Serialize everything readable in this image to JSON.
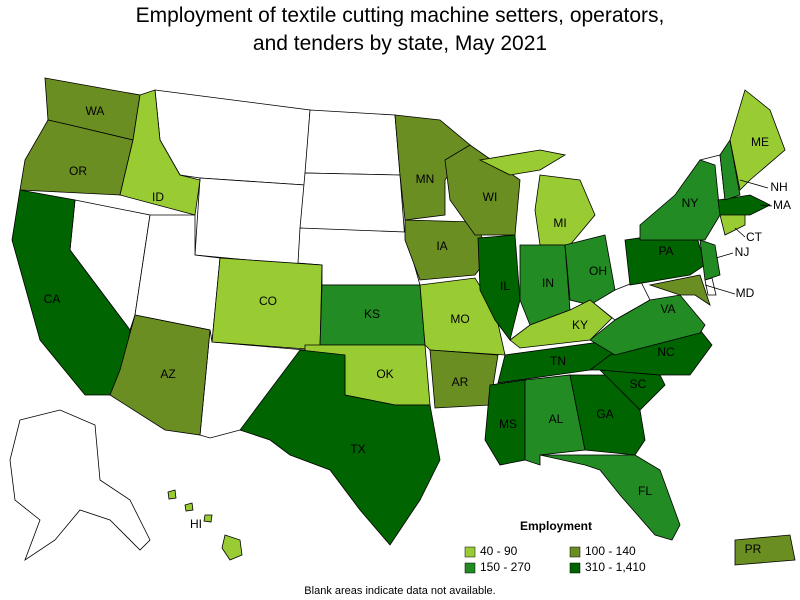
{
  "title": "Employment of textile cutting machine setters, operators, and tenders by state, May 2021",
  "legend": {
    "title": "Employment",
    "items": [
      {
        "label": "40 - 90",
        "color": "#99cc33"
      },
      {
        "label": "100 - 140",
        "color": "#6b8e23"
      },
      {
        "label": "150 - 270",
        "color": "#238b23"
      },
      {
        "label": "310 - 1,410",
        "color": "#006400"
      }
    ]
  },
  "states": [
    {
      "label": "WA",
      "bin": 1
    },
    {
      "label": "OR",
      "bin": 1
    },
    {
      "label": "CA",
      "bin": 3
    },
    {
      "label": "ID",
      "bin": 0
    },
    {
      "label": "AZ",
      "bin": 1
    },
    {
      "label": "CO",
      "bin": 0
    },
    {
      "label": "KS",
      "bin": 2
    },
    {
      "label": "OK",
      "bin": 0
    },
    {
      "label": "TX",
      "bin": 3
    },
    {
      "label": "MN",
      "bin": 1
    },
    {
      "label": "IA",
      "bin": 1
    },
    {
      "label": "MO",
      "bin": 0
    },
    {
      "label": "AR",
      "bin": 1
    },
    {
      "label": "WI",
      "bin": 1
    },
    {
      "label": "IL",
      "bin": 3
    },
    {
      "label": "MI",
      "bin": 0
    },
    {
      "label": "IN",
      "bin": 2
    },
    {
      "label": "OH",
      "bin": 2
    },
    {
      "label": "KY",
      "bin": 0
    },
    {
      "label": "TN",
      "bin": 3
    },
    {
      "label": "MS",
      "bin": 3
    },
    {
      "label": "AL",
      "bin": 2
    },
    {
      "label": "GA",
      "bin": 3
    },
    {
      "label": "FL",
      "bin": 2
    },
    {
      "label": "SC",
      "bin": 3
    },
    {
      "label": "NC",
      "bin": 3
    },
    {
      "label": "VA",
      "bin": 2
    },
    {
      "label": "PA",
      "bin": 3
    },
    {
      "label": "NY",
      "bin": 2
    },
    {
      "label": "MD",
      "bin": 1
    },
    {
      "label": "NJ",
      "bin": 2
    },
    {
      "label": "CT",
      "bin": 0
    },
    {
      "label": "MA",
      "bin": 3
    },
    {
      "label": "NH",
      "bin": 2
    },
    {
      "label": "ME",
      "bin": 0
    },
    {
      "label": "HI",
      "bin": 0
    },
    {
      "label": "PR",
      "bin": 1
    }
  ],
  "note": "Blank areas indicate data not available."
}
